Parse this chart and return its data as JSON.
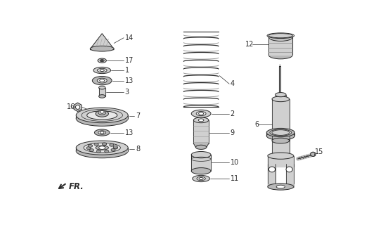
{
  "bg": "#ffffff",
  "lc": "#2a2a2a",
  "gray1": "#d0d0d0",
  "gray2": "#b8b8b8",
  "gray3": "#e8e8e8",
  "gray4": "#a0a0a0",
  "fs": 7.0
}
